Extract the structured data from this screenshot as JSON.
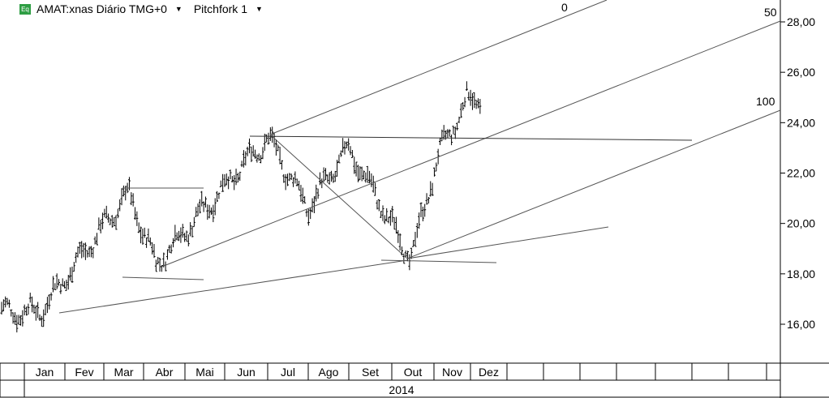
{
  "toolbar": {
    "eq_icon": "Eq",
    "symbol_label": "AMAT:xnas Diário TMG+0",
    "tool_label": "Pitchfork 1",
    "dropdown_icon": "caret-down-icon"
  },
  "chart_data": {
    "type": "ohlc",
    "ylim": [
      14.4,
      28.8
    ],
    "y_ticks": [
      "16,00",
      "18,00",
      "20,00",
      "22,00",
      "24,00",
      "26,00",
      "28,00"
    ],
    "y_tick_values": [
      16,
      18,
      20,
      22,
      24,
      26,
      28
    ],
    "months": [
      "Jan",
      "Fev",
      "Mar",
      "Abr",
      "Mai",
      "Jun",
      "Jul",
      "Ago",
      "Set",
      "Out",
      "Nov",
      "Dez"
    ],
    "year_label": "2014",
    "fork_labels": [
      "0",
      "50",
      "100"
    ],
    "key_points": [
      {
        "date": "2014-01-13",
        "close": 16.5
      },
      {
        "date": "2014-03-20",
        "close": 21.2
      },
      {
        "date": "2014-04-10",
        "close": 18.4
      },
      {
        "date": "2014-07-01",
        "close": 23.4
      },
      {
        "date": "2014-08-01",
        "close": 20.6
      },
      {
        "date": "2014-09-01",
        "close": 23.0
      },
      {
        "date": "2014-10-15",
        "close": 18.6
      },
      {
        "date": "2014-11-04",
        "close": 22.6
      },
      {
        "date": "2014-11-28",
        "close": 24.9
      }
    ],
    "grid": false,
    "colors": {
      "line": "#555555",
      "bars": "#000000",
      "axis": "#000000"
    }
  }
}
